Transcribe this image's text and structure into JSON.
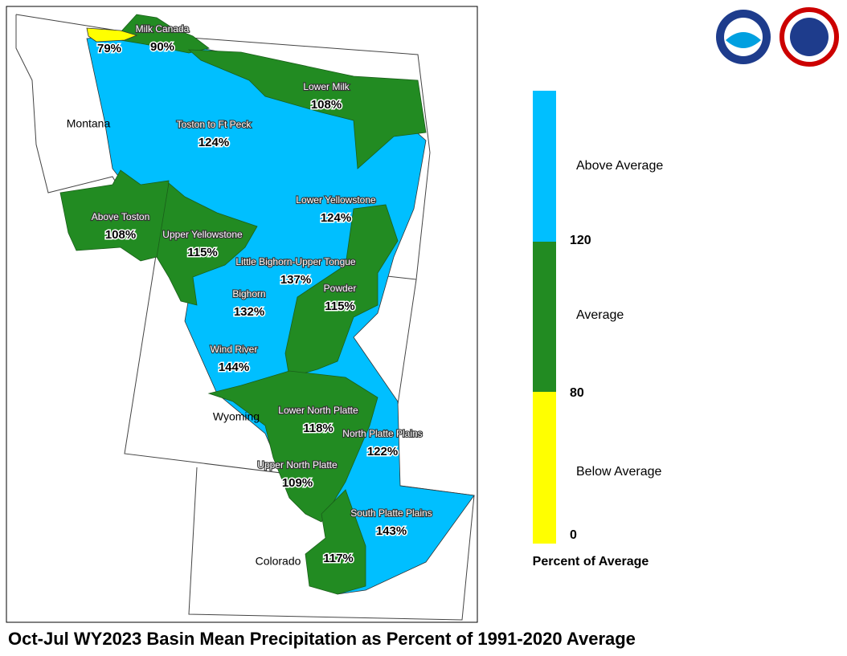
{
  "title": "Oct-Jul WY2023 Basin Mean Precipitation as Percent of 1991-2020 Average",
  "states": [
    "Montana",
    "Wyoming",
    "Colorado"
  ],
  "basins": [
    {
      "value": "79%"
    },
    {
      "name": "Milk Canada",
      "value": "90%"
    },
    {
      "name": "Lower Milk",
      "value": "108%"
    },
    {
      "name": "Toston to Ft Peck",
      "value": "124%"
    },
    {
      "name": "Above Toston",
      "value": "108%"
    },
    {
      "name": "Upper Yellowstone",
      "value": "115%"
    },
    {
      "name": "Lower Yellowstone",
      "value": "124%"
    },
    {
      "name": "Little Bighorn-Upper Tongue",
      "value": "137%"
    },
    {
      "name": "Powder",
      "value": "115%"
    },
    {
      "name": "Bighorn",
      "value": "132%"
    },
    {
      "name": "Wind River",
      "value": "144%"
    },
    {
      "name": "Lower North Platte",
      "value": "118%"
    },
    {
      "name": "North Platte Plains",
      "value": "122%"
    },
    {
      "name": "Upper North Platte",
      "value": "109%"
    },
    {
      "name": "South Platte Plains",
      "value": "143%"
    },
    {
      "value": "117%"
    }
  ],
  "legend": {
    "title": "Percent of Average",
    "classes": [
      {
        "label": "Above Average",
        "color": "#00bfff"
      },
      {
        "label": "Average",
        "color": "#228b22"
      },
      {
        "label": "Below Average",
        "color": "#ffff00"
      }
    ],
    "breaks": [
      "120",
      "80",
      "0"
    ]
  }
}
